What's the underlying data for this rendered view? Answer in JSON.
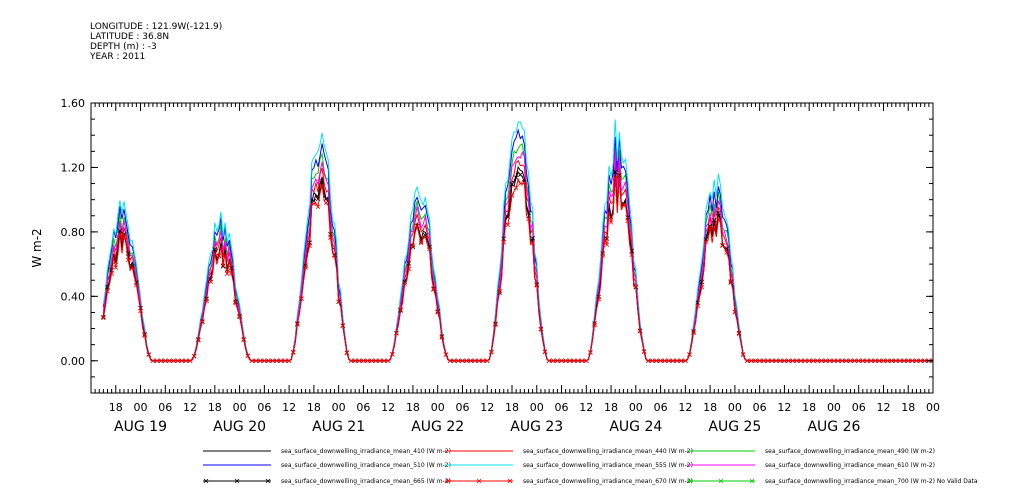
{
  "header": {
    "longitude": "LONGITUDE : 121.9W(-121.9)",
    "latitude": "LATITUDE : 36.8N",
    "depth": "DEPTH (m) : -3",
    "year": "YEAR : 2011"
  },
  "chart_data": {
    "type": "line",
    "ylabel": "W m-2",
    "ylim": [
      -0.2,
      1.6
    ],
    "yticks": [
      0.0,
      0.4,
      0.8,
      1.2,
      1.6
    ],
    "ytick_labels": [
      "0.00",
      "0.40",
      "0.80",
      "1.20",
      "1.60"
    ],
    "xlim_hours": [
      12,
      216
    ],
    "xticks_hours": [
      18,
      24,
      30,
      36,
      42,
      48,
      54,
      60,
      66,
      72,
      78,
      84,
      90,
      96,
      102,
      108,
      114,
      120,
      126,
      132,
      138,
      144,
      150,
      156,
      162,
      168,
      174,
      180,
      186,
      192,
      198,
      204,
      210,
      216
    ],
    "xtick_labels": [
      "18",
      "00",
      "06",
      "12",
      "18",
      "00",
      "06",
      "12",
      "18",
      "00",
      "06",
      "12",
      "18",
      "00",
      "06",
      "12",
      "18",
      "00",
      "06",
      "12",
      "18",
      "00",
      "06",
      "12",
      "18",
      "00",
      "06",
      "12",
      "18",
      "00",
      "06",
      "12",
      "18",
      "00"
    ],
    "day_labels": [
      {
        "text": "AUG 19",
        "hour": 24
      },
      {
        "text": "AUG 20",
        "hour": 48
      },
      {
        "text": "AUG 21",
        "hour": 72
      },
      {
        "text": "AUG 22",
        "hour": 96
      },
      {
        "text": "AUG 23",
        "hour": 120
      },
      {
        "text": "AUG 24",
        "hour": 144
      },
      {
        "text": "AUG 25",
        "hour": 168
      },
      {
        "text": "AUG 26",
        "hour": 192
      }
    ],
    "days": [
      {
        "label": "AUG 19",
        "peak": 0.78
      },
      {
        "label": "AUG 20",
        "peak": 0.7
      },
      {
        "label": "AUG 21",
        "peak": 1.12
      },
      {
        "label": "AUG 22",
        "peak": 0.85
      },
      {
        "label": "AUG 23",
        "peak": 1.22
      },
      {
        "label": "AUG 24",
        "peak": 1.12
      },
      {
        "label": "AUG 25",
        "peak": 0.92
      }
    ],
    "series": [
      {
        "name": "sea_surface_downwelling_irradiance_mean_410 (W m-2)",
        "color": "#000000",
        "scale": 0.97,
        "marker": ""
      },
      {
        "name": "sea_surface_downwelling_irradiance_mean_440 (W m-2)",
        "color": "#ff0000",
        "scale": 1.02,
        "marker": ""
      },
      {
        "name": "sea_surface_downwelling_irradiance_mean_490 (W m-2)",
        "color": "#00cc00",
        "scale": 1.1,
        "marker": ""
      },
      {
        "name": "sea_surface_downwelling_irradiance_mean_510 (W m-2)",
        "color": "#0000ff",
        "scale": 1.16,
        "marker": ""
      },
      {
        "name": "sea_surface_downwelling_irradiance_mean_555 (W m-2)",
        "color": "#00e5ee",
        "scale": 1.22,
        "marker": ""
      },
      {
        "name": "sea_surface_downwelling_irradiance_mean_610 (W m-2)",
        "color": "#ff00ff",
        "scale": 1.06,
        "marker": ""
      },
      {
        "name": "sea_surface_downwelling_irradiance_mean_665 (W m-2)",
        "color": "#000000",
        "scale": 0.95,
        "marker": "x"
      },
      {
        "name": "sea_surface_downwelling_irradiance_mean_670 (W m-2)",
        "color": "#ff0000",
        "scale": 0.93,
        "marker": "x"
      },
      {
        "name": "sea_surface_downwelling_irradiance_mean_700 (W m-2) No Valid Data",
        "color": "#00cc00",
        "scale": 0,
        "marker": "x"
      }
    ]
  }
}
